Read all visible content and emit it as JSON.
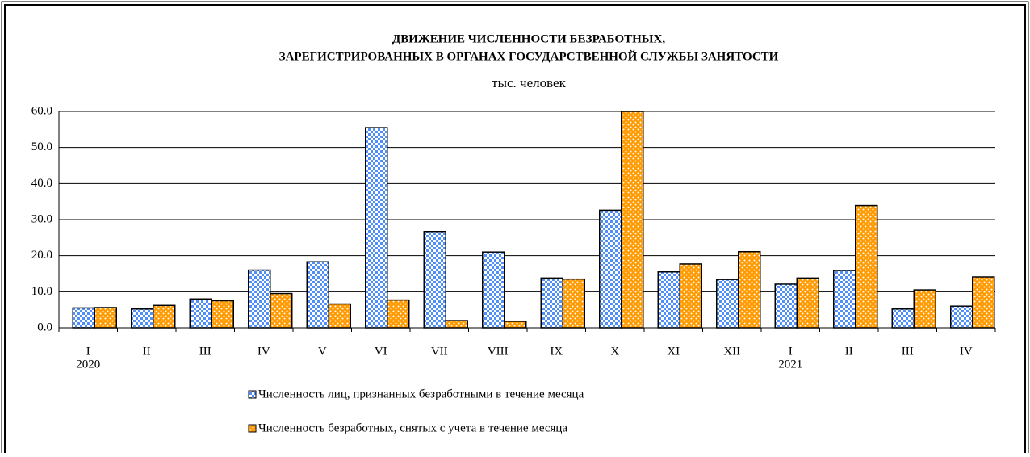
{
  "chart_data": {
    "type": "bar",
    "title": [
      "ДВИЖЕНИЕ ЧИСЛЕННОСТИ БЕЗРАБОТНЫХ,",
      "ЗАРЕГИСТРИРОВАННЫХ В ОРГАНАХ ГОСУДАРСТВЕННОЙ СЛУЖБЫ ЗАНЯТОСТИ"
    ],
    "subtitle": "тыс. человек",
    "categories": [
      "I",
      "II",
      "III",
      "IV",
      "V",
      "VI",
      "VII",
      "VIII",
      "IX",
      "X",
      "XI",
      "XII",
      "I",
      "II",
      "III",
      "IV"
    ],
    "years": [
      "2020",
      null,
      null,
      null,
      null,
      null,
      null,
      null,
      null,
      null,
      null,
      null,
      "2021",
      null,
      null,
      null
    ],
    "series": [
      {
        "name": "Численность лиц, признанных безработными в течение месяца",
        "color": "#4f8ff7",
        "pattern": "checker",
        "values": [
          5.5,
          5.2,
          8.0,
          16.0,
          18.3,
          55.5,
          26.7,
          21.0,
          13.8,
          32.6,
          15.5,
          13.4,
          12.1,
          15.9,
          5.2,
          6.0
        ]
      },
      {
        "name": "Численность безработных, снятых с учета в течение месяца",
        "color": "#ff9a00",
        "pattern": "dots",
        "values": [
          5.6,
          6.2,
          7.5,
          9.5,
          6.6,
          7.7,
          2.0,
          1.8,
          13.5,
          60.0,
          17.7,
          21.1,
          13.8,
          33.9,
          10.5,
          14.1
        ]
      }
    ],
    "ylim": [
      0,
      60
    ],
    "yticks": [
      {
        "value": 0,
        "label": "0.0"
      },
      {
        "value": 10,
        "label": "10.0"
      },
      {
        "value": 20,
        "label": "20.0"
      },
      {
        "value": 30,
        "label": "30.0"
      },
      {
        "value": 40,
        "label": "40.0"
      },
      {
        "value": 50,
        "label": "50.0"
      },
      {
        "value": 60,
        "label": "60.0"
      }
    ],
    "grid": true
  }
}
